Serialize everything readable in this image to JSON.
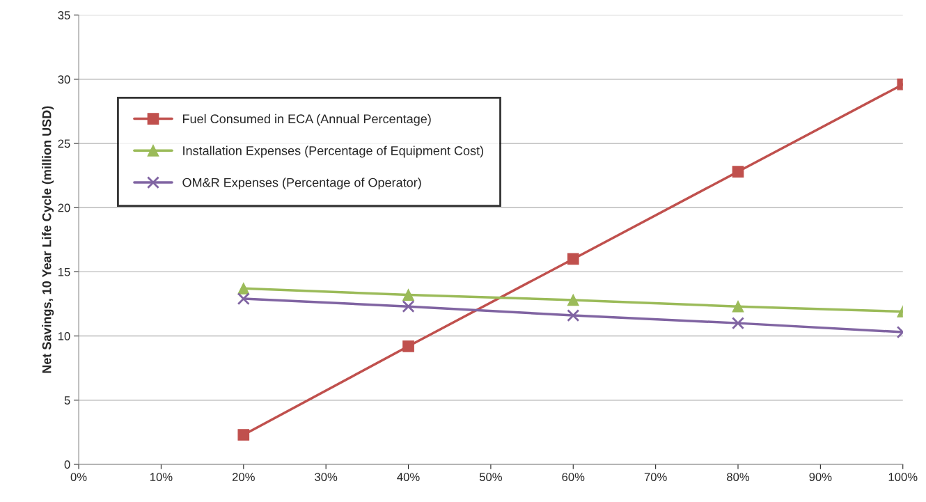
{
  "chart_data": {
    "type": "line",
    "ylabel": "Net Savings, 10 Year Life Cycle (million USD)",
    "x": [
      20,
      40,
      60,
      80,
      100
    ],
    "series": [
      {
        "name": "Fuel Consumed in ECA (Annual Percentage)",
        "color": "#c0504d",
        "marker": "square",
        "values": [
          2.3,
          9.2,
          16.0,
          22.8,
          29.6
        ]
      },
      {
        "name": "Installation Expenses (Percentage of Equipment Cost)",
        "color": "#9bbb59",
        "marker": "triangle",
        "values": [
          13.7,
          13.2,
          12.8,
          12.3,
          11.9
        ]
      },
      {
        "name": "OM&R Expenses (Percentage of Operator)",
        "color": "#8064a2",
        "marker": "cross",
        "values": [
          12.9,
          12.3,
          11.6,
          11.0,
          10.3
        ]
      }
    ],
    "xlim": [
      0,
      100
    ],
    "xticks": [
      {
        "value": 0,
        "label": "0%"
      },
      {
        "value": 10,
        "label": "10%"
      },
      {
        "value": 20,
        "label": "20%"
      },
      {
        "value": 30,
        "label": "30%"
      },
      {
        "value": 40,
        "label": "40%"
      },
      {
        "value": 50,
        "label": "50%"
      },
      {
        "value": 60,
        "label": "60%"
      },
      {
        "value": 70,
        "label": "70%"
      },
      {
        "value": 80,
        "label": "80%"
      },
      {
        "value": 90,
        "label": "90%"
      },
      {
        "value": 100,
        "label": "100%"
      }
    ],
    "ylim": [
      0,
      35
    ],
    "yticks": [
      0,
      5,
      10,
      15,
      20,
      25,
      30,
      35
    ],
    "grid": "y",
    "legend": "top left",
    "line_style": "solid"
  }
}
